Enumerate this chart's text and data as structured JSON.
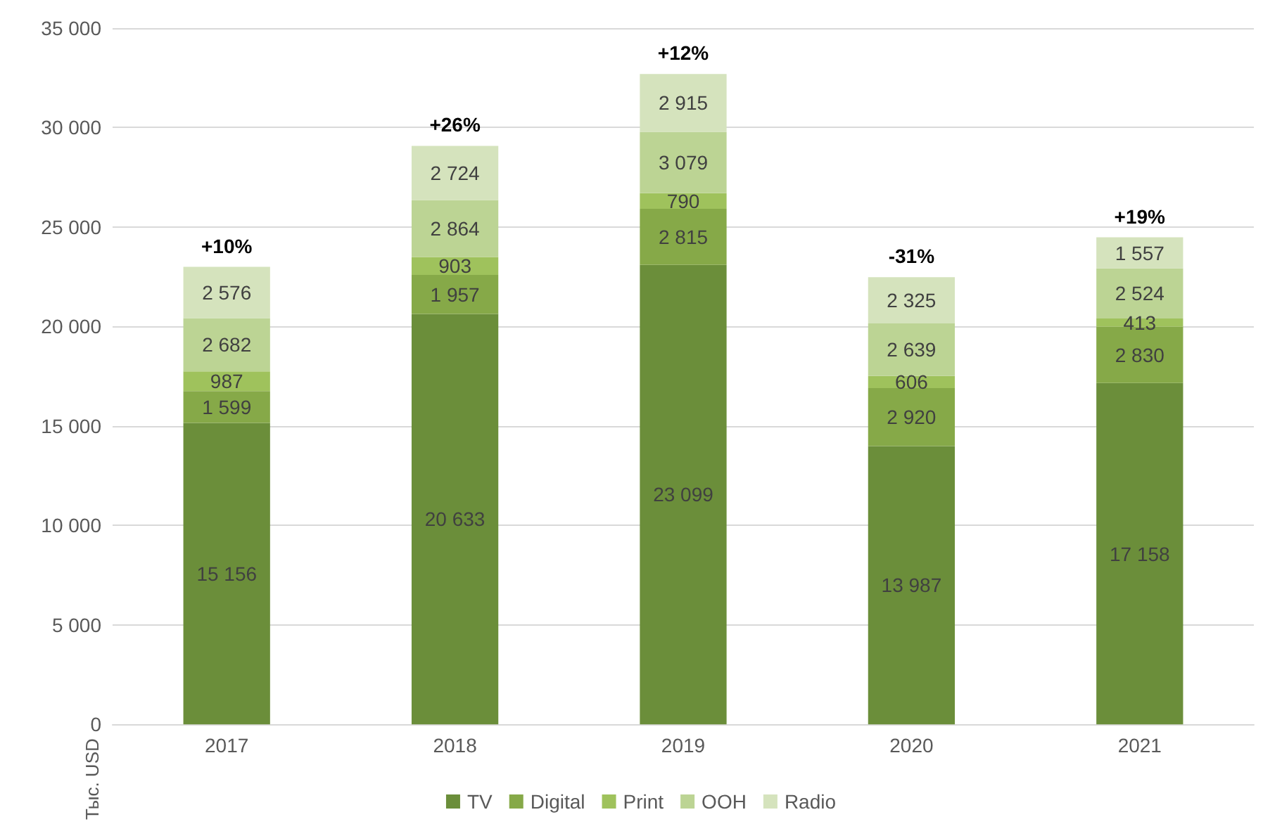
{
  "chart_data": {
    "type": "bar",
    "stacked": true,
    "ylabel": "Тыс. USD",
    "categories": [
      "2017",
      "2018",
      "2019",
      "2020",
      "2021"
    ],
    "series": [
      {
        "name": "TV",
        "color": "#6b8e3a",
        "values": [
          15156,
          20633,
          23099,
          13987,
          17158
        ],
        "value_labels": [
          "15 156",
          "20 633",
          "23 099",
          "13 987",
          "17 158"
        ]
      },
      {
        "name": "Digital",
        "color": "#86a948",
        "values": [
          1599,
          1957,
          2815,
          2920,
          2830
        ],
        "value_labels": [
          "1 599",
          "1 957",
          "2 815",
          "2 920",
          "2 830"
        ]
      },
      {
        "name": "Print",
        "color": "#9fc25c",
        "values": [
          987,
          903,
          790,
          606,
          413
        ],
        "value_labels": [
          "987",
          "903",
          "790",
          "606",
          "413"
        ]
      },
      {
        "name": "OOH",
        "color": "#bcd494",
        "values": [
          2682,
          2864,
          3079,
          2639,
          2524
        ],
        "value_labels": [
          "2 682",
          "2 864",
          "3 079",
          "2 639",
          "2 524"
        ]
      },
      {
        "name": "Radio",
        "color": "#d5e3bd",
        "values": [
          2576,
          2724,
          2915,
          2325,
          1557
        ],
        "value_labels": [
          "2 576",
          "2 724",
          "2 915",
          "2 325",
          "1 557"
        ]
      }
    ],
    "annotations": [
      {
        "text": "+10%",
        "x": "2017",
        "y": 23000
      },
      {
        "text": "+26%",
        "x": "2018",
        "y": 29081
      },
      {
        "text": "+12%",
        "x": "2019",
        "y": 32698
      },
      {
        "text": "-31%",
        "x": "2020",
        "y": 22477
      },
      {
        "text": "+19%",
        "x": "2021",
        "y": 24482
      }
    ],
    "ylim": [
      0,
      35000
    ],
    "yticks": [
      {
        "value": 0,
        "label": "0"
      },
      {
        "value": 5000,
        "label": "5 000"
      },
      {
        "value": 10000,
        "label": "10 000"
      },
      {
        "value": 15000,
        "label": "15 000"
      },
      {
        "value": 20000,
        "label": "20 000"
      },
      {
        "value": 25000,
        "label": "25 000"
      },
      {
        "value": 30000,
        "label": "30 000"
      },
      {
        "value": 35000,
        "label": "35 000"
      }
    ],
    "grid": "y",
    "legend": "bottom"
  }
}
